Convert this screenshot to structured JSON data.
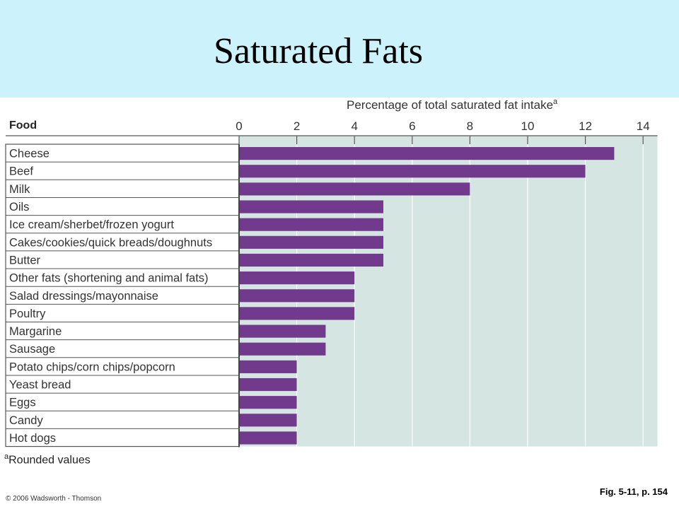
{
  "slide": {
    "title": "Saturated Fats",
    "footnote_marker": "a",
    "footnote_text": "Rounded values",
    "figure_ref": "Fig. 5-11, p. 154",
    "copyright": "© 2006 Wadsworth - Thomson"
  },
  "colors": {
    "header_band": "#ccf2fc",
    "bar": "#723a8c",
    "plot_bg": "#d5e6e2"
  },
  "chart_data": {
    "type": "bar",
    "orientation": "horizontal",
    "title": "Percentage of total saturated fat intake",
    "title_superscript": "a",
    "column_header": "Food",
    "xlim": [
      0,
      14.5
    ],
    "xticks": [
      0,
      2,
      4,
      6,
      8,
      10,
      12,
      14
    ],
    "grid": true,
    "categories": [
      "Cheese",
      "Beef",
      "Milk",
      "Oils",
      "Ice cream/sherbet/frozen yogurt",
      "Cakes/cookies/quick breads/doughnuts",
      "Butter",
      "Other fats (shortening and animal fats)",
      "Salad dressings/mayonnaise",
      "Poultry",
      "Margarine",
      "Sausage",
      "Potato chips/corn chips/popcorn",
      "Yeast bread",
      "Eggs",
      "Candy",
      "Hot dogs"
    ],
    "values": [
      13,
      12,
      8,
      5,
      5,
      5,
      5,
      4,
      4,
      4,
      3,
      3,
      2,
      2,
      2,
      2,
      2
    ]
  }
}
